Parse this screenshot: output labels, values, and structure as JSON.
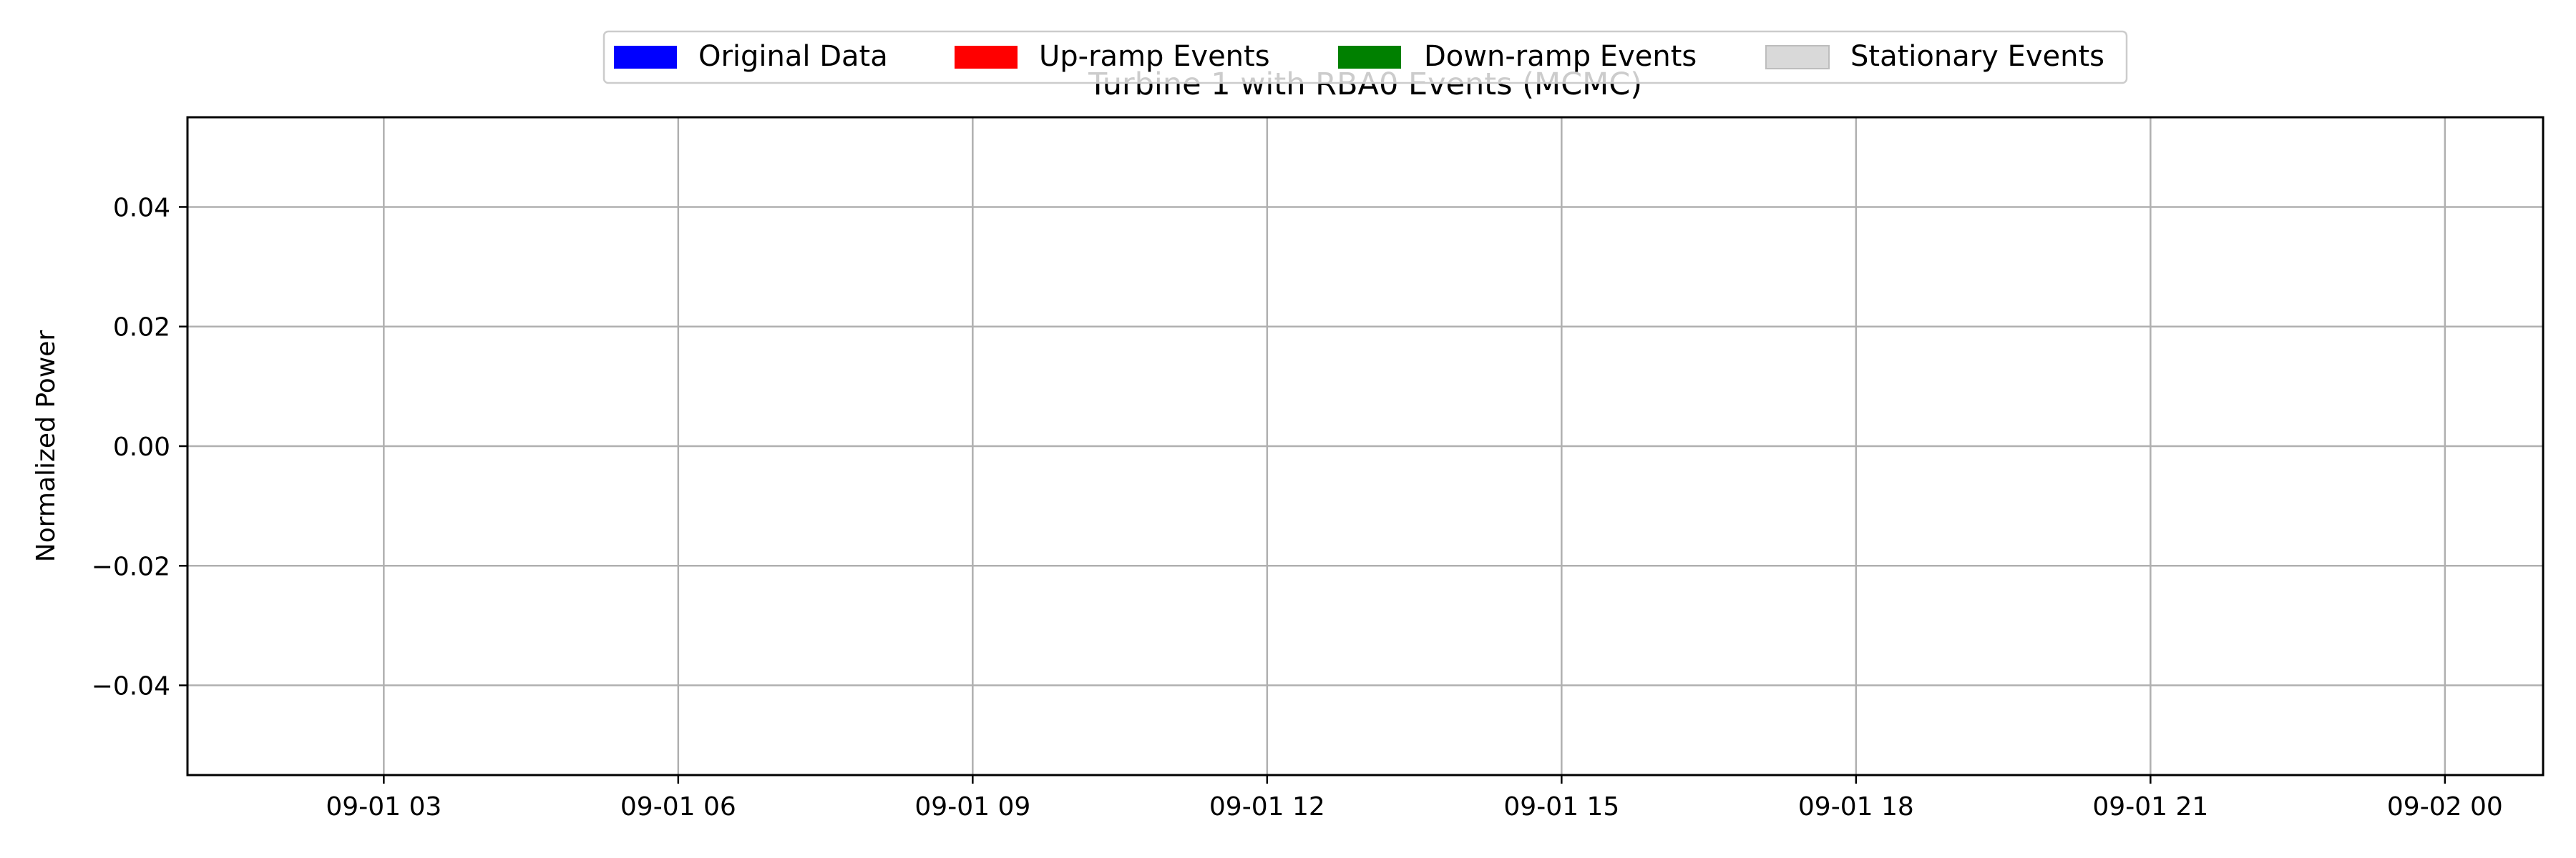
{
  "chart_data": {
    "type": "line",
    "title": "Turbine 1 with RBA0 Events (MCMC)",
    "xlabel": "",
    "ylabel": "Normalized Power",
    "xlim": [
      "2025-09-01 01:00",
      "2025-09-02 01:00"
    ],
    "ylim": [
      -0.055,
      0.055
    ],
    "x_ticks": [
      "09-01 03",
      "09-01 06",
      "09-01 09",
      "09-01 12",
      "09-01 15",
      "09-01 18",
      "09-01 21",
      "09-02 00"
    ],
    "x_tick_hours": [
      3,
      6,
      9,
      12,
      15,
      18,
      21,
      24
    ],
    "y_ticks": [
      0.04,
      0.02,
      0.0,
      -0.02,
      -0.04
    ],
    "y_tick_labels": [
      "0.04",
      "0.02",
      "0.00",
      "−0.02",
      "−0.04"
    ],
    "grid": true,
    "legend_position": "top-center",
    "legend": [
      {
        "label": "Original Data",
        "color": "#0000ff"
      },
      {
        "label": "Up-ramp Events",
        "color": "#ff0000"
      },
      {
        "label": "Down-ramp Events",
        "color": "#008000"
      },
      {
        "label": "Stationary Events",
        "color": "#d9d9d9"
      }
    ],
    "series": []
  }
}
